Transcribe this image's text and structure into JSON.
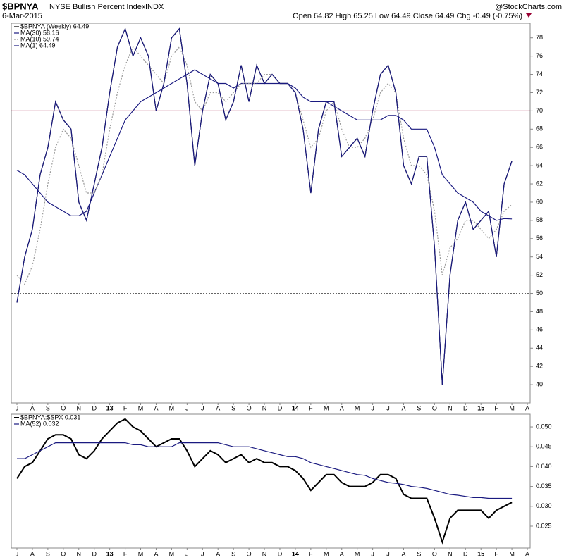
{
  "header": {
    "symbol": "$BPNYA",
    "name": "NYSE Bullish Percent Index",
    "exchange": "INDX",
    "date": "6-Mar-2015",
    "quote": "Open 64.82 High 65.25 Low 64.49 Close 64.49 Chg -0.49 (-0.75%)",
    "source": "@StockCharts.com"
  },
  "chart_data": [
    {
      "type": "line",
      "categories": [
        "J",
        null,
        "A",
        null,
        "S",
        null,
        "O",
        null,
        "N",
        null,
        "D",
        null,
        "13",
        null,
        "F",
        null,
        "M",
        null,
        "A",
        null,
        "M",
        null,
        "J",
        null,
        "J",
        null,
        "A",
        null,
        "S",
        null,
        "O",
        null,
        "N",
        null,
        "D",
        null,
        "14",
        null,
        "F",
        null,
        "M",
        null,
        "A",
        null,
        "M",
        null,
        "J",
        null,
        "J",
        null,
        "A",
        null,
        "S",
        null,
        "O",
        null,
        "N",
        null,
        "D",
        null,
        "15",
        null,
        "F",
        null,
        "M",
        null,
        "A",
        null
      ],
      "series": [
        {
          "name": "$BPNYA (Weekly) 64.49",
          "color": "#000000",
          "style": "solid",
          "values": [
            49,
            54,
            57,
            63,
            66,
            71,
            69,
            68,
            60,
            58,
            62,
            66,
            72,
            77,
            79,
            76,
            78,
            76,
            70,
            73,
            78,
            79,
            73,
            64,
            70,
            74,
            73,
            69,
            71,
            75,
            71,
            75,
            73,
            74,
            73,
            73,
            72,
            68,
            61,
            68,
            71,
            71,
            65,
            66,
            67,
            65,
            70,
            74,
            75,
            72,
            64,
            62,
            65,
            65,
            55,
            40,
            52,
            58,
            60,
            57,
            58,
            59,
            54,
            62,
            64.5,
            null,
            null,
            null
          ]
        },
        {
          "name": "MA(30) 58.16",
          "color": "#1a1a80",
          "style": "solid",
          "values": [
            63.5,
            63,
            62,
            61,
            60,
            59.5,
            59,
            58.5,
            58.5,
            59,
            61,
            63,
            65,
            67,
            69,
            70,
            71,
            71.5,
            72,
            72.5,
            73,
            73.5,
            74,
            74.5,
            74,
            73.5,
            73,
            73,
            72.5,
            73,
            73,
            73,
            73,
            73,
            73,
            73,
            72.5,
            71.5,
            71,
            71,
            71,
            70.5,
            70,
            69.5,
            69,
            69,
            69,
            69,
            69.5,
            69.5,
            69,
            68,
            68,
            68,
            66,
            63,
            62,
            61,
            60.5,
            60,
            59,
            58.5,
            58,
            58.2,
            58.16,
            null,
            null,
            null
          ]
        },
        {
          "name": "MA(10) 59.74",
          "color": "#999999",
          "style": "dotted",
          "values": [
            52,
            51,
            53,
            57,
            62,
            66,
            68,
            67,
            64,
            61,
            61,
            63,
            68,
            72,
            75,
            77,
            76,
            75,
            74,
            73,
            76,
            77,
            75,
            71,
            70,
            72,
            72,
            71,
            72,
            73,
            73,
            73,
            74,
            74,
            73,
            73,
            72,
            69,
            66,
            67,
            70,
            71,
            68,
            66,
            66,
            67,
            69,
            72,
            73,
            72,
            67,
            64,
            64,
            63,
            59,
            52,
            55,
            56,
            58,
            58,
            57,
            56,
            57,
            59,
            59.74,
            null,
            null,
            null
          ]
        },
        {
          "name": "MA(1) 64.49",
          "color": "#1a1a80",
          "style": "solid",
          "values": [
            49,
            54,
            57,
            63,
            66,
            71,
            69,
            68,
            60,
            58,
            62,
            66,
            72,
            77,
            79,
            76,
            78,
            76,
            70,
            73,
            78,
            79,
            73,
            64,
            70,
            74,
            73,
            69,
            71,
            75,
            71,
            75,
            73,
            74,
            73,
            73,
            72,
            68,
            61,
            68,
            71,
            71,
            65,
            66,
            67,
            65,
            70,
            74,
            75,
            72,
            64,
            62,
            65,
            65,
            55,
            40,
            52,
            58,
            60,
            57,
            58,
            59,
            54,
            62,
            64.49,
            null,
            null,
            null
          ]
        }
      ],
      "hlines": [
        {
          "value": 70,
          "color": "#990033",
          "style": "solid"
        },
        {
          "value": 50,
          "color": "#666666",
          "style": "dotted"
        }
      ],
      "ylim": [
        38,
        79.6
      ],
      "yticks": [
        40,
        42,
        44,
        46,
        48,
        50,
        52,
        54,
        56,
        58,
        60,
        62,
        64,
        66,
        68,
        70,
        72,
        74,
        76,
        78
      ],
      "legend": "upper left"
    },
    {
      "type": "line",
      "categories": [
        "J",
        null,
        "A",
        null,
        "S",
        null,
        "O",
        null,
        "N",
        null,
        "D",
        null,
        "13",
        null,
        "F",
        null,
        "M",
        null,
        "A",
        null,
        "M",
        null,
        "J",
        null,
        "J",
        null,
        "A",
        null,
        "S",
        null,
        "O",
        null,
        "N",
        null,
        "D",
        null,
        "14",
        null,
        "F",
        null,
        "M",
        null,
        "A",
        null,
        "M",
        null,
        "J",
        null,
        "J",
        null,
        "A",
        null,
        "S",
        null,
        "O",
        null,
        "N",
        null,
        "D",
        null,
        "15",
        null,
        "F",
        null,
        "M",
        null,
        "A",
        null
      ],
      "series": [
        {
          "name": "$BPNYA:$SPX 0.031",
          "color": "#000000",
          "style": "bold",
          "values": [
            0.037,
            0.04,
            0.041,
            0.044,
            0.047,
            0.048,
            0.048,
            0.047,
            0.043,
            0.042,
            0.044,
            0.047,
            0.049,
            0.051,
            0.052,
            0.05,
            0.049,
            0.047,
            0.045,
            0.046,
            0.047,
            0.047,
            0.044,
            0.04,
            0.042,
            0.044,
            0.043,
            0.041,
            0.042,
            0.043,
            0.041,
            0.042,
            0.041,
            0.041,
            0.04,
            0.04,
            0.039,
            0.037,
            0.034,
            0.036,
            0.038,
            0.038,
            0.036,
            0.035,
            0.035,
            0.035,
            0.036,
            0.038,
            0.038,
            0.037,
            0.033,
            0.032,
            0.032,
            0.032,
            0.027,
            0.021,
            0.027,
            0.029,
            0.029,
            0.029,
            0.029,
            0.027,
            0.029,
            0.03,
            0.031,
            null,
            null,
            null
          ]
        },
        {
          "name": "MA(52) 0.032",
          "color": "#1a1a80",
          "style": "solid",
          "values": [
            0.042,
            0.042,
            0.043,
            0.044,
            0.045,
            0.046,
            0.046,
            0.046,
            0.046,
            0.046,
            0.046,
            0.046,
            0.046,
            0.046,
            0.046,
            0.0455,
            0.0455,
            0.045,
            0.045,
            0.045,
            0.045,
            0.046,
            0.046,
            0.046,
            0.046,
            0.046,
            0.046,
            0.0455,
            0.045,
            0.045,
            0.045,
            0.0445,
            0.044,
            0.0435,
            0.043,
            0.0425,
            0.0425,
            0.042,
            0.041,
            0.0405,
            0.04,
            0.0395,
            0.039,
            0.0385,
            0.038,
            0.0378,
            0.037,
            0.0365,
            0.036,
            0.0358,
            0.0355,
            0.035,
            0.0348,
            0.0345,
            0.034,
            0.0335,
            0.033,
            0.0328,
            0.0325,
            0.0322,
            0.0322,
            0.032,
            0.032,
            0.032,
            0.032,
            null,
            null,
            null
          ]
        }
      ],
      "ylim": [
        0.0195,
        0.0532
      ],
      "yticks": [
        {
          "value": 0.025,
          "label": "0.025"
        },
        {
          "value": 0.03,
          "label": "0.030"
        },
        {
          "value": 0.035,
          "label": "0.035"
        },
        {
          "value": 0.04,
          "label": "0.040"
        },
        {
          "value": 0.045,
          "label": "0.045"
        },
        {
          "value": 0.05,
          "label": "0.050"
        }
      ],
      "legend": "upper left"
    }
  ]
}
